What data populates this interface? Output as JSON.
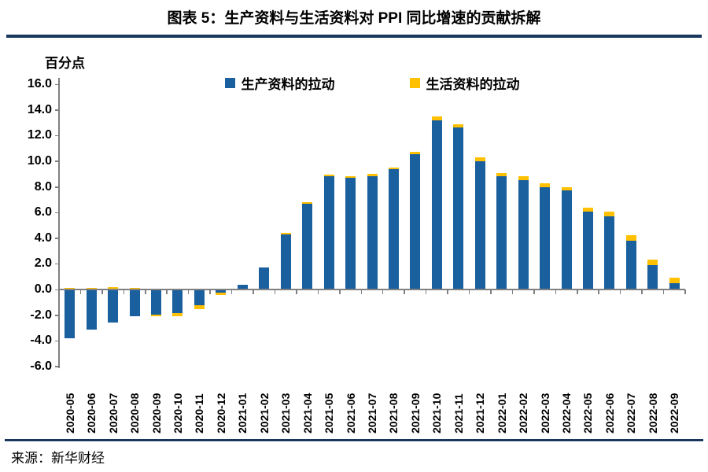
{
  "header": {
    "title": "图表 5：生产资料与生活资料对 PPI 同比增速的贡献拆解"
  },
  "chart_data": {
    "type": "bar",
    "stacked": true,
    "ylabel": "百分点",
    "categories": [
      "2020-05",
      "2020-06",
      "2020-07",
      "2020-08",
      "2020-09",
      "2020-10",
      "2020-11",
      "2020-12",
      "2021-01",
      "2021-02",
      "2021-03",
      "2021-04",
      "2021-05",
      "2021-06",
      "2021-07",
      "2021-08",
      "2021-09",
      "2021-10",
      "2021-11",
      "2021-12",
      "2022-01",
      "2022-02",
      "2022-03",
      "2022-04",
      "2022-05",
      "2022-06",
      "2022-07",
      "2022-08",
      "2022-09"
    ],
    "series": [
      {
        "name": "生产资料的拉动",
        "color": "#1A5F9E",
        "values": [
          -3.8,
          -3.1,
          -2.6,
          -2.1,
          -1.95,
          -1.85,
          -1.25,
          -0.25,
          0.35,
          1.7,
          4.3,
          6.7,
          8.8,
          8.7,
          8.85,
          9.4,
          10.55,
          13.2,
          12.6,
          10.0,
          8.8,
          8.5,
          8.0,
          7.7,
          6.1,
          5.7,
          3.8,
          1.9,
          0.5
        ]
      },
      {
        "name": "生活资料的拉动",
        "color": "#FFC000",
        "values": [
          0.1,
          0.1,
          0.2,
          0.1,
          -0.15,
          -0.25,
          -0.3,
          -0.15,
          0.0,
          0.0,
          0.1,
          0.1,
          0.15,
          0.1,
          0.15,
          0.1,
          0.15,
          0.3,
          0.3,
          0.3,
          0.3,
          0.3,
          0.3,
          0.3,
          0.3,
          0.4,
          0.4,
          0.4,
          0.4
        ]
      }
    ],
    "ylim": [
      -6.0,
      16.0
    ],
    "y_ticks": [
      "16.0",
      "14.0",
      "12.0",
      "10.0",
      "8.0",
      "6.0",
      "4.0",
      "2.0",
      "0.0",
      "-2.0",
      "-4.0",
      "-6.0"
    ],
    "legend_position": "top",
    "grid": false
  },
  "footer": {
    "source": "来源：新华财经"
  },
  "colors": {
    "rule": "#17375E",
    "axis": "#808080"
  }
}
